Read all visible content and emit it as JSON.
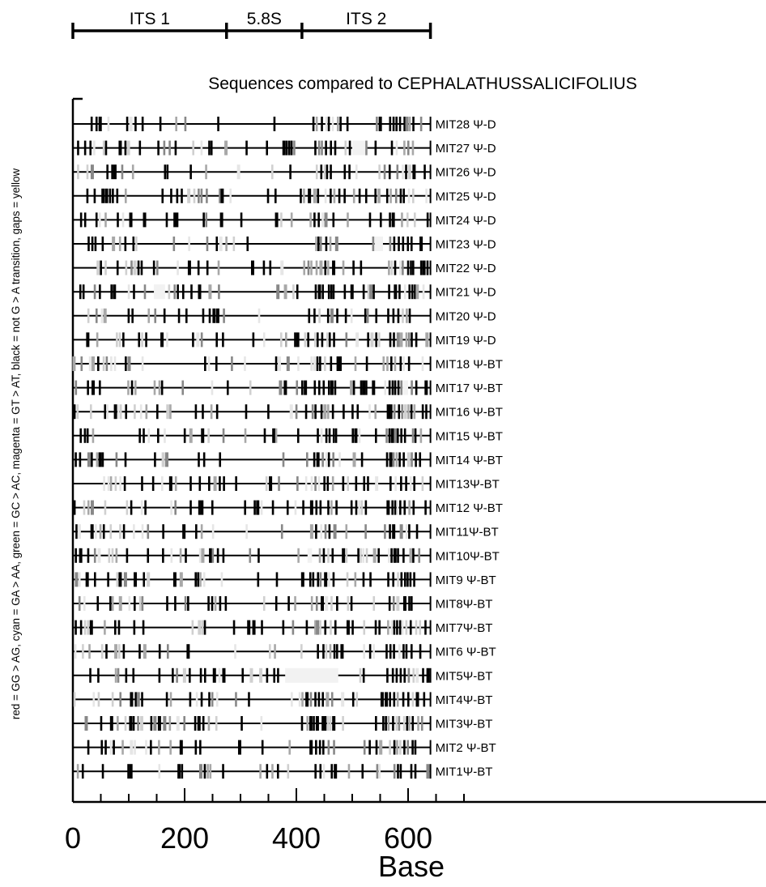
{
  "chart_data": {
    "type": "scatter",
    "title": "Sequences compared to CEPHALATHUSSALICIFOLIUS",
    "xlabel": "Base",
    "ylabel": "red = GG > AG, cyan = GA > AA, green = GC > AC, magenta = GT > AT, black = not G > A transition, gaps = yellow",
    "xlim": [
      0,
      700
    ],
    "x_ticks": [
      0,
      200,
      400,
      600
    ],
    "x_tick_labels": [
      "0",
      "200",
      "400",
      "600"
    ],
    "regions": [
      {
        "label": "ITS 1",
        "start": 0,
        "end": 275
      },
      {
        "label": "5.8S",
        "start": 275,
        "end": 410
      },
      {
        "label": "ITS 2",
        "start": 410,
        "end": 640
      }
    ],
    "sequence_start": 0,
    "sequence_end": 640,
    "category_colors": {
      "GG>AG": "#d0d0d0",
      "GA>AA": "#e6e6e6",
      "GC>AC": "#a8a8a8",
      "GT>AT": "#888888",
      "not G>A": "#000000",
      "gap": "#f2f2f2"
    },
    "sequences": [
      {
        "label": "MIT28 Ψ-D",
        "gaps": []
      },
      {
        "label": "MIT27 Ψ-D",
        "gaps": [
          [
            500,
            525
          ]
        ]
      },
      {
        "label": "MIT26 Ψ-D",
        "gaps": []
      },
      {
        "label": "MIT25 Ψ-D",
        "gaps": []
      },
      {
        "label": "MIT24 Ψ-D",
        "gaps": []
      },
      {
        "label": "MIT23 Ψ-D",
        "gaps": [
          [
            540,
            555
          ]
        ]
      },
      {
        "label": "MIT22 Ψ-D",
        "gaps": []
      },
      {
        "label": "MIT21 Ψ-D",
        "gaps": [
          [
            145,
            165
          ]
        ]
      },
      {
        "label": "MIT20 Ψ-D",
        "gaps": []
      },
      {
        "label": "MIT19 Ψ-D",
        "gaps": []
      },
      {
        "label": "MIT18 Ψ-BT",
        "gaps": []
      },
      {
        "label": "MIT17 Ψ-BT",
        "gaps": [
          [
            590,
            600
          ]
        ]
      },
      {
        "label": "MIT16 Ψ-BT",
        "gaps": []
      },
      {
        "label": "MIT15 Ψ-BT",
        "gaps": []
      },
      {
        "label": "MIT14 Ψ-BT",
        "gaps": []
      },
      {
        "label": "MIT13Ψ-BT",
        "gaps": []
      },
      {
        "label": "MIT12 Ψ-BT",
        "gaps": []
      },
      {
        "label": "MIT11Ψ-BT",
        "gaps": []
      },
      {
        "label": "MIT10Ψ-BT",
        "gaps": [
          [
            420,
            428
          ]
        ]
      },
      {
        "label": "MIT9 Ψ-BT",
        "gaps": []
      },
      {
        "label": "MIT8Ψ-BT",
        "gaps": []
      },
      {
        "label": "MIT7Ψ-BT",
        "gaps": []
      },
      {
        "label": "MIT6 Ψ-BT",
        "gaps": []
      },
      {
        "label": "MIT5Ψ-BT",
        "gaps": [
          [
            380,
            475
          ]
        ]
      },
      {
        "label": "MIT4Ψ-BT",
        "gaps": []
      },
      {
        "label": "MIT3Ψ-BT",
        "gaps": []
      },
      {
        "label": "MIT2 Ψ-BT",
        "gaps": []
      },
      {
        "label": "MIT1Ψ-BT",
        "gaps": []
      }
    ]
  }
}
